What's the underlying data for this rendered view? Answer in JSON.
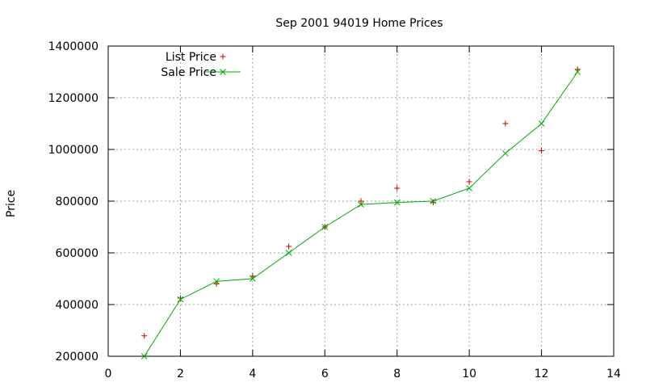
{
  "chart_data": {
    "type": "line",
    "title": "Sep 2001 94019 Home Prices",
    "xlabel": "",
    "ylabel": "Price",
    "xlim": [
      0,
      14
    ],
    "ylim": [
      200000,
      1400000
    ],
    "x_ticks": [
      "0",
      "2",
      "4",
      "6",
      "8",
      "10",
      "12",
      "14"
    ],
    "y_ticks": [
      "200000",
      "400000",
      "600000",
      "800000",
      "1000000",
      "1200000",
      "1400000"
    ],
    "grid": true,
    "legend_position": "top-left",
    "series": [
      {
        "name": "List Price",
        "style": "points",
        "marker": "+",
        "color": "#cc0000",
        "x": [
          1,
          2,
          3,
          4,
          5,
          6,
          7,
          8,
          9,
          10,
          11,
          12,
          13
        ],
        "y": [
          279000,
          425000,
          480000,
          510000,
          625000,
          700000,
          800000,
          850000,
          795000,
          875000,
          1100000,
          995000,
          1310000
        ]
      },
      {
        "name": "Sale Price",
        "style": "linespoints",
        "marker": "x",
        "color": "#00aa00",
        "x": [
          1,
          2,
          3,
          4,
          5,
          6,
          7,
          8,
          9,
          10,
          11,
          12,
          13
        ],
        "y": [
          200000,
          420000,
          490000,
          500000,
          600000,
          700000,
          787000,
          795000,
          800000,
          850000,
          985000,
          1100000,
          1300000
        ]
      }
    ]
  }
}
